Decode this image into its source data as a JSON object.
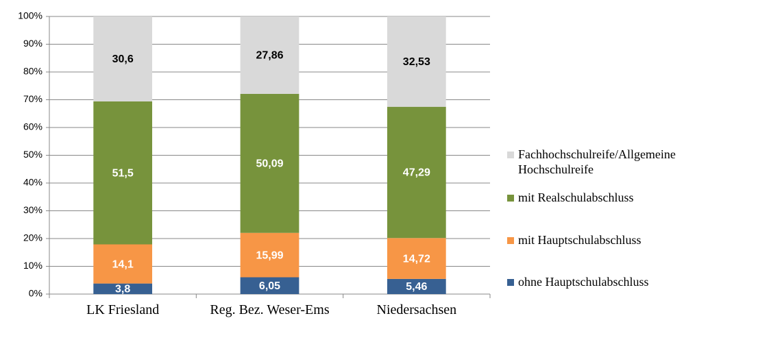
{
  "chart_data": {
    "type": "stacked_bar",
    "categories": [
      "LK Friesland",
      "Reg. Bez. Weser-Ems",
      "Niedersachsen"
    ],
    "series": [
      {
        "name": "ohne Hauptschulabschluss",
        "color": "#376092",
        "label_color": "#ffffff",
        "values": [
          3.8,
          6.05,
          5.46
        ],
        "value_labels": [
          "3,8",
          "6,05",
          "5,46"
        ]
      },
      {
        "name": "mit Hauptschulabschluss",
        "color": "#f79646",
        "label_color": "#ffffff",
        "values": [
          14.1,
          15.99,
          14.72
        ],
        "value_labels": [
          "14,1",
          "15,99",
          "14,72"
        ]
      },
      {
        "name": "mit Realschulabschluss",
        "color": "#77933c",
        "label_color": "#ffffff",
        "values": [
          51.5,
          50.09,
          47.29
        ],
        "value_labels": [
          "51,5",
          "50,09",
          "47,29"
        ]
      },
      {
        "name": "Fachhochschulreife/Allgemeine Hochschulreife",
        "color": "#d9d9d9",
        "label_color": "#000000",
        "values": [
          30.6,
          27.86,
          32.53
        ],
        "value_labels": [
          "30,6",
          "27,86",
          "32,53"
        ]
      }
    ],
    "ylim": [
      0,
      100
    ],
    "yticks": [
      {
        "value": 0,
        "label": "0%"
      },
      {
        "value": 10,
        "label": "10%"
      },
      {
        "value": 20,
        "label": "20%"
      },
      {
        "value": 30,
        "label": "30%"
      },
      {
        "value": 40,
        "label": "40%"
      },
      {
        "value": 50,
        "label": "50%"
      },
      {
        "value": 60,
        "label": "60%"
      },
      {
        "value": 70,
        "label": "70%"
      },
      {
        "value": 80,
        "label": "80%"
      },
      {
        "value": 90,
        "label": "90%"
      },
      {
        "value": 100,
        "label": "100%"
      }
    ],
    "grid": true,
    "legend": "right"
  }
}
